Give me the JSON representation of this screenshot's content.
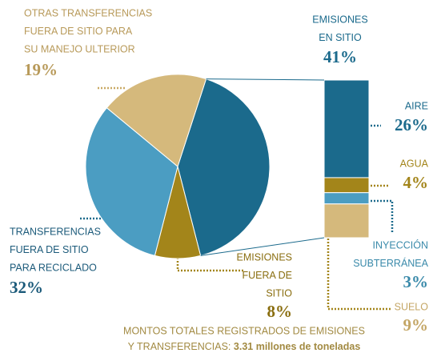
{
  "chart_data": {
    "type": "pie",
    "categories": [
      [
        "EMISIONES",
        "EN SITIO"
      ],
      [
        "EMISIONES",
        "FUERA DE",
        "SITIO"
      ],
      [
        "TRANSFERENCIAS",
        "FUERA DE SITIO",
        "PARA RECICLADO"
      ],
      [
        "OTRAS TRANSFERENCIAS",
        "FUERA DE SITIO PARA",
        "SU MANEJO ULTERIOR"
      ]
    ],
    "values": [
      41,
      8,
      32,
      19
    ],
    "value_labels": [
      "41%",
      "8%",
      "32%",
      "19%"
    ],
    "colors": [
      "#1b6a8c",
      "#a3851a",
      "#4b9dc2",
      "#d5b97c"
    ],
    "breakdown": {
      "categories": [
        [
          "AIRE"
        ],
        [
          "AGUA"
        ],
        [
          "INYECCIÓN",
          "SUBTERRÁNEA"
        ],
        [
          "SUELO"
        ]
      ],
      "values": [
        26,
        4,
        3,
        9
      ],
      "value_labels": [
        "26%",
        "4%",
        "3%",
        "9%"
      ],
      "colors": [
        "#1b6a8c",
        "#a3851a",
        "#4b9dc2",
        "#d5b97c"
      ]
    },
    "note": [
      "MONTOS TOTALES REGISTRADOS DE EMISIONES",
      "Y TRANSFERENCIAS:",
      "3.31 millones de toneladas"
    ]
  }
}
